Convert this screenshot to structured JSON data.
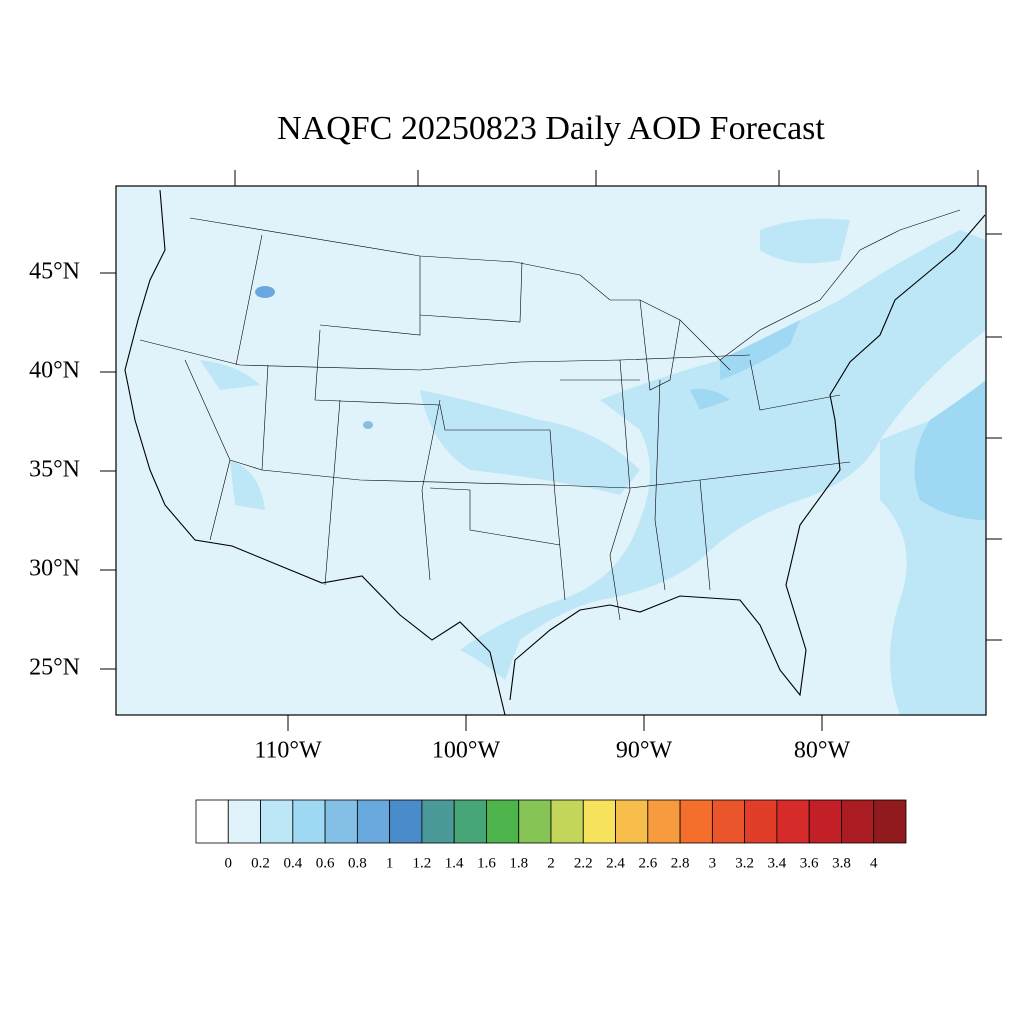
{
  "map": {
    "title": "NAQFC 20250823 Daily AOD Forecast",
    "lat_labels": [
      {
        "value": 45,
        "label": "45°N"
      },
      {
        "value": 40,
        "label": "40°N"
      },
      {
        "value": 35,
        "label": "35°N"
      },
      {
        "value": 30,
        "label": "30°N"
      },
      {
        "value": 25,
        "label": "25°N"
      }
    ],
    "lon_labels": [
      {
        "value": -110,
        "label": "110°W"
      },
      {
        "value": -100,
        "label": "100°W"
      },
      {
        "value": -90,
        "label": "90°W"
      },
      {
        "value": -80,
        "label": "80°W"
      }
    ],
    "colorbar": {
      "levels": [
        0,
        0.2,
        0.4,
        0.6,
        0.8,
        1,
        1.2,
        1.4,
        1.6,
        1.8,
        2,
        2.2,
        2.4,
        2.6,
        2.8,
        3,
        3.2,
        3.4,
        3.6,
        3.8,
        4
      ],
      "colors": [
        "#ffffff",
        "#e0f3fb",
        "#bde6f7",
        "#9fd8f3",
        "#84c0e6",
        "#69a8dc",
        "#4a8bc9",
        "#4a9a9a",
        "#47a677",
        "#4cb44a",
        "#86c555",
        "#c3d65a",
        "#f7e35e",
        "#f8be4c",
        "#f79c3e",
        "#f46e2c",
        "#ea552b",
        "#e13e2a",
        "#d62a2b",
        "#c21f27",
        "#aa1c22",
        "#901a1e"
      ]
    }
  }
}
